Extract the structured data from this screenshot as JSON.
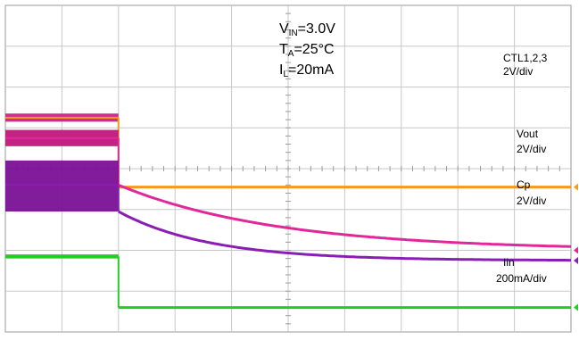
{
  "conditions": {
    "vin": {
      "prefix": "V",
      "sub": "IN",
      "value": "=3.0V"
    },
    "ta": {
      "prefix": "T",
      "sub": "A",
      "value": "=25°C"
    },
    "il": {
      "prefix": "I",
      "sub": "L",
      "value": "=20mA"
    }
  },
  "chart_data": {
    "type": "line",
    "title": "",
    "xlabel": "",
    "ylabel": "",
    "grid": true,
    "grid_divisions": {
      "x": 10,
      "y": 8
    },
    "xlim": [
      0,
      10
    ],
    "ylim": [
      0,
      8
    ],
    "event_time_div": 2.0,
    "series": [
      {
        "name": "CTL1,2,3",
        "scale": "2V/div",
        "color": "#f39a1a",
        "band_color": "#cc2288",
        "before": {
          "level": 5.25,
          "band": [
            5.15,
            5.35
          ]
        },
        "after": {
          "start": 3.55,
          "end": 3.55,
          "tau": 1.0
        }
      },
      {
        "name": "Vout",
        "scale": "2V/div",
        "color": "#e0289a",
        "band_color": "#c0187c",
        "before": {
          "level": 4.75,
          "band": [
            4.55,
            4.95
          ]
        },
        "after": {
          "start": 3.6,
          "end": 2.0,
          "tau": 2.8
        }
      },
      {
        "name": "Cp",
        "scale": "2V/div",
        "color": "#8a1eb4",
        "band_color": "#7a1096",
        "before": {
          "level": 3.6,
          "band": [
            2.95,
            4.2
          ]
        },
        "after": {
          "start": 2.95,
          "end": 1.75,
          "tau": 1.6
        }
      },
      {
        "name": "Iin",
        "scale": "200mA/div",
        "color": "#22cc22",
        "band_color": "#22cc22",
        "before": {
          "level": 1.85,
          "band": [
            1.8,
            1.9
          ]
        },
        "after": {
          "start": 0.6,
          "end": 0.6,
          "tau": 1.0
        }
      }
    ]
  }
}
